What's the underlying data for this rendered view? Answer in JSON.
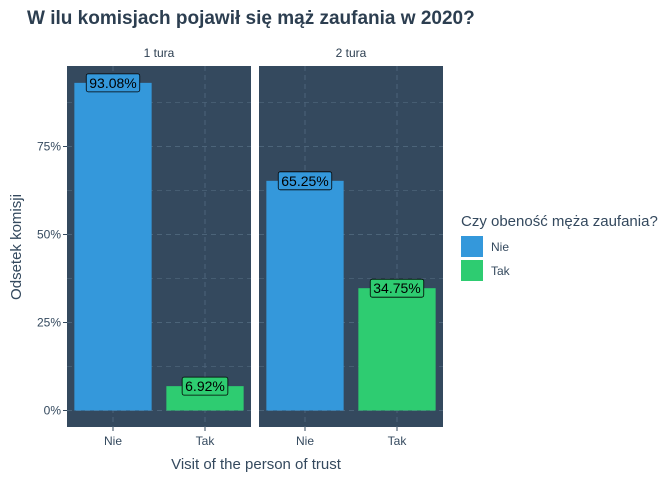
{
  "chart_data": {
    "type": "bar",
    "title": "W ilu komisjach pojawił się mąż zaufania w 2020?",
    "xlabel": "Visit of the person of trust",
    "ylabel": "Odsetek komisji",
    "ylim": [
      0,
      100
    ],
    "yticks": [
      0,
      25,
      50,
      75
    ],
    "ytick_labels": [
      "0%",
      "25%",
      "50%",
      "75%"
    ],
    "categories": [
      "Nie",
      "Tak"
    ],
    "facets": [
      {
        "name": "1 tura",
        "values": [
          93.08,
          6.92
        ],
        "labels": [
          "93.08%",
          "6.92%"
        ]
      },
      {
        "name": "2 tura",
        "values": [
          65.25,
          34.75
        ],
        "labels": [
          "65.25%",
          "34.75%"
        ]
      }
    ],
    "legend": {
      "title": "Czy obeność męża zaufania?",
      "position": "right",
      "entries": [
        {
          "label": "Nie",
          "color": "#3498db"
        },
        {
          "label": "Tak",
          "color": "#2ecc71"
        }
      ]
    },
    "colors": {
      "panel": "#34495e",
      "grid": "#4c6479",
      "text": "#34495e"
    }
  }
}
